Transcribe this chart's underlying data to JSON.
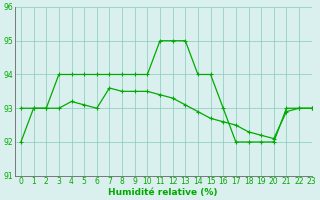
{
  "x": [
    0,
    1,
    2,
    3,
    4,
    5,
    6,
    7,
    8,
    9,
    10,
    11,
    12,
    13,
    14,
    15,
    16,
    17,
    18,
    19,
    20,
    21,
    22,
    23
  ],
  "line1": [
    92,
    93,
    93,
    94,
    94,
    94,
    94,
    94,
    94,
    94,
    94,
    95,
    95,
    95,
    94,
    94,
    93,
    92,
    92,
    92,
    92,
    93,
    93,
    93
  ],
  "line2": [
    93,
    93,
    93,
    93,
    93.2,
    93.1,
    93.0,
    93.6,
    93.5,
    93.5,
    93.5,
    93.4,
    93.3,
    93.1,
    92.9,
    92.7,
    92.6,
    92.5,
    92.3,
    92.2,
    92.1,
    92.9,
    93,
    93
  ],
  "line_color": "#00aa00",
  "bg_color": "#daf0ee",
  "grid_color": "#88ccbb",
  "xlabel": "Humidité relative (%)",
  "ylim": [
    91,
    96
  ],
  "xlim": [
    -0.5,
    23
  ],
  "yticks": [
    91,
    92,
    93,
    94,
    95,
    96
  ],
  "xticks": [
    0,
    1,
    2,
    3,
    4,
    5,
    6,
    7,
    8,
    9,
    10,
    11,
    12,
    13,
    14,
    15,
    16,
    17,
    18,
    19,
    20,
    21,
    22,
    23
  ],
  "marker": "+",
  "markersize": 3.5,
  "linewidth": 0.9,
  "tick_fontsize": 5.5,
  "xlabel_fontsize": 6.5
}
